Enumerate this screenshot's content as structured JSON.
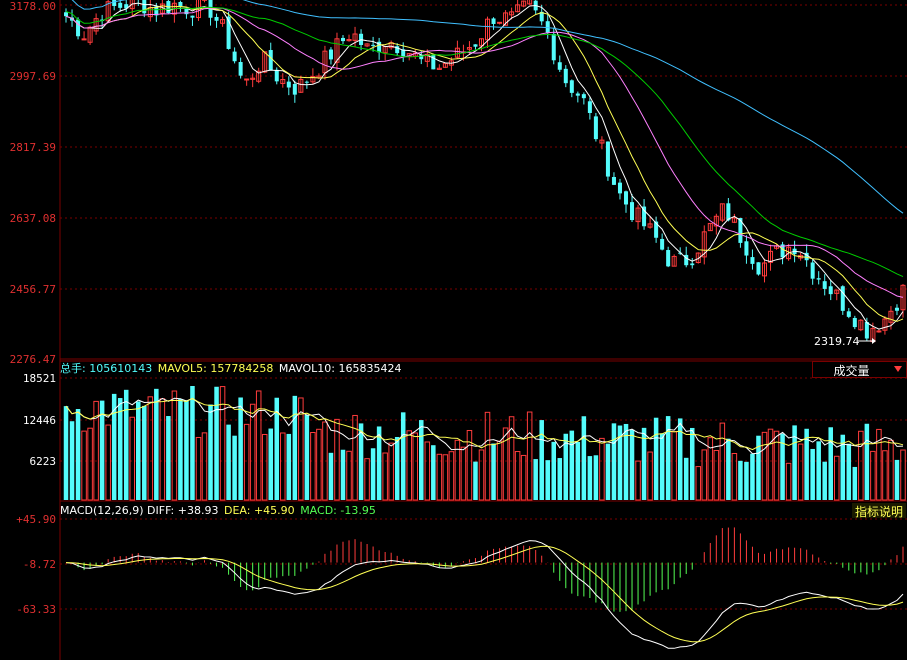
{
  "colors": {
    "up": "#ff3c3c",
    "down": "#54fcfc",
    "grid": "#7a0000",
    "axis_text": "#e03030",
    "ma5": "#ffffff",
    "ma10": "#ffff54",
    "ma20": "#ff80ff",
    "ma30": "#00cc00",
    "ma60": "#40c0ff",
    "macd_pos": "#ff3c3c",
    "macd_neg": "#54ff54"
  },
  "price_panel": {
    "y_ticks": [
      "3178.00",
      "2997.69",
      "2817.39",
      "2637.08",
      "2456.77",
      "2276.47"
    ],
    "low_marker": "2319.74"
  },
  "volume_panel": {
    "label": "总手:",
    "total_value": "105610143",
    "mavol5_label": "MAVOL5:",
    "mavol5_value": "157784258",
    "mavol10_label": "MAVOL10:",
    "mavol10_value": "165835424",
    "button_label": "成交量",
    "y_ticks": [
      "18521",
      "12446",
      "6223"
    ]
  },
  "macd_panel": {
    "label": "MACD(12,26,9)",
    "diff_label": "DIFF:",
    "diff_value": "+38.93",
    "dea_label": "DEA:",
    "dea_value": "+45.90",
    "macd_label": "MACD:",
    "macd_value": "-13.95",
    "button_label": "指标说明",
    "y_ticks": [
      "+45.90",
      "-8.72",
      "-63.33"
    ]
  },
  "chart_data": {
    "type": "candlestick",
    "price_range": [
      2276.47,
      3178.0
    ],
    "volume_range": [
      0,
      18521
    ],
    "macd_range": [
      -130,
      60
    ],
    "anchors": [
      3150,
      3105,
      3160,
      3175,
      3190,
      3165,
      3180,
      3170,
      3175,
      3100,
      2970,
      3040,
      2990,
      2965,
      3010,
      3060,
      3110,
      3060,
      3090,
      3070,
      3030,
      3020,
      3050,
      3085,
      3150,
      3140,
      3175,
      3110,
      2990,
      2940,
      2820,
      2700,
      2640,
      2590,
      2520,
      2530,
      2600,
      2660,
      2580,
      2510,
      2550,
      2570,
      2500,
      2450,
      2400,
      2350,
      2380,
      2450
    ]
  }
}
